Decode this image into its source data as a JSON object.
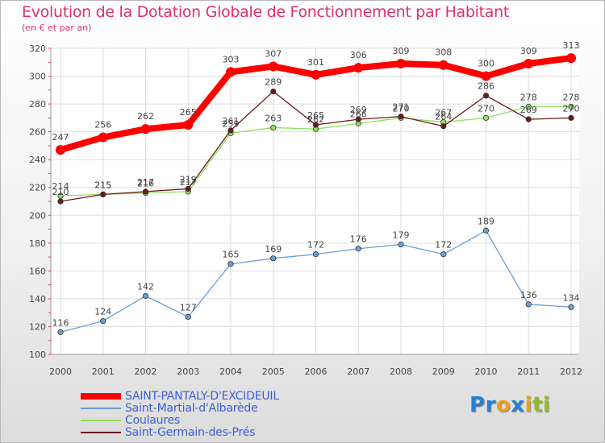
{
  "title": "Evolution de la Dotation Globale de Fonctionnement par Habitant",
  "subtitle": "(en € et par an)",
  "brand": {
    "letters": [
      "P",
      "r",
      "o",
      "x",
      "i",
      "t",
      "i"
    ],
    "colors": [
      "#2a7fd4",
      "#2a7fd4",
      "#e8a020",
      "#2a7fd4",
      "#e8a020",
      "#8dbf2a",
      "#8dbf2a"
    ]
  },
  "chart_data": {
    "type": "line",
    "title": "Evolution de la Dotation Globale de Fonctionnement par Habitant",
    "xlabel": "",
    "ylabel": "(en € et par an)",
    "x": [
      "2000",
      "2001",
      "2002",
      "2003",
      "2004",
      "2005",
      "2006",
      "2007",
      "2008",
      "2009",
      "2010",
      "2011",
      "2012"
    ],
    "ylim": [
      100,
      320
    ],
    "yticks": [
      100,
      120,
      140,
      160,
      180,
      200,
      220,
      240,
      260,
      280,
      300,
      320
    ],
    "grid": true,
    "legend": "bottom-left",
    "series": [
      {
        "name": "SAINT-PANTALY-D'EXCIDEUIL",
        "color": "#ff0000",
        "values": [
          247,
          256,
          262,
          265,
          303,
          307,
          301,
          306,
          309,
          308,
          300,
          309,
          313
        ]
      },
      {
        "name": "Saint-Martial-d'Albarède",
        "color": "#6b9fd8",
        "values": [
          116,
          124,
          142,
          127,
          165,
          169,
          172,
          176,
          179,
          172,
          189,
          136,
          134
        ]
      },
      {
        "name": "Coulaures",
        "color": "#8fe05a",
        "values": [
          214,
          215,
          216,
          217,
          259,
          263,
          262,
          266,
          270,
          267,
          270,
          278,
          278
        ]
      },
      {
        "name": "Saint-Germain-des-Prés",
        "color": "#6b1a1a",
        "values": [
          210,
          215,
          217,
          219,
          261,
          289,
          265,
          269,
          271,
          264,
          286,
          269,
          270
        ]
      }
    ]
  }
}
